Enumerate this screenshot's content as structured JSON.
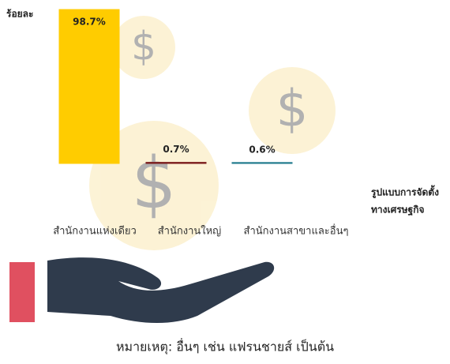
{
  "chart_data": {
    "type": "bar",
    "y_label": "ร้อยละ",
    "x_label": [
      "รูปแบบการจัดตั้ง",
      "ทางเศรษฐกิจ"
    ],
    "categories": [
      "สำนักงานแห่งเดียว",
      "สำนักงานใหญ่",
      "สำนักงานสาขาและอื่นๆ"
    ],
    "values": [
      98.7,
      0.7,
      0.6
    ],
    "value_labels": [
      "98.7%",
      "0.7%",
      "0.6%"
    ],
    "colors": [
      "#ffcc00",
      "#7b1c1c",
      "#1f7a8c"
    ],
    "ylim": [
      0,
      100
    ],
    "note": "หมายเหตุ: อื่นๆ เช่น แฟรนชายส์ เป็นต้น"
  }
}
